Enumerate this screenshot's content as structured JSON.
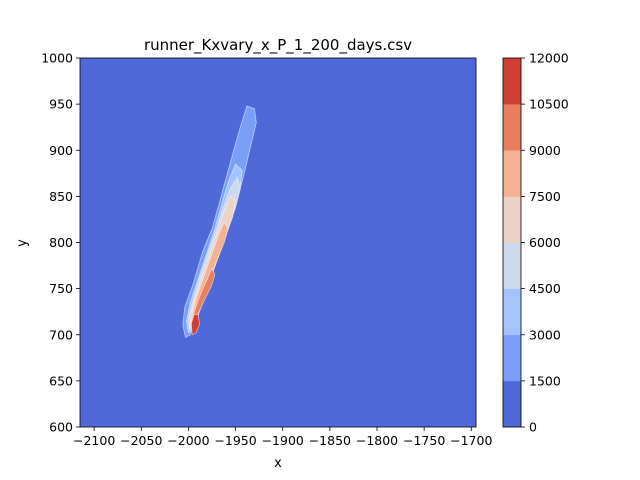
{
  "chart_data": {
    "type": "contour",
    "title": "runner_Kxvary_x_P_1_200_days.csv",
    "xlabel": "x",
    "ylabel": "y",
    "xlim": [
      -2115,
      -1695
    ],
    "ylim": [
      600,
      1000
    ],
    "x_ticks": [
      -2100,
      -2050,
      -2000,
      -1950,
      -1900,
      -1850,
      -1800,
      -1750,
      -1700
    ],
    "x_tick_labels": [
      "−2100",
      "−2050",
      "−2000",
      "−1950",
      "−1900",
      "−1850",
      "−1800",
      "−1750",
      "−1700"
    ],
    "y_ticks": [
      600,
      650,
      700,
      750,
      800,
      850,
      900,
      950,
      1000
    ],
    "y_tick_labels": [
      "600",
      "650",
      "700",
      "750",
      "800",
      "850",
      "900",
      "950",
      "1000"
    ],
    "levels": [
      0,
      1500,
      3000,
      4500,
      6000,
      7500,
      9000,
      10500,
      12000
    ],
    "level_colors": [
      "#4f69d9",
      "#7b9ff9",
      "#a5c3fe",
      "#cdd9ec",
      "#ecd3c5",
      "#f5b194",
      "#e8805f",
      "#ce3f34"
    ],
    "colorbar_tick_labels": [
      "0",
      "1500",
      "3000",
      "4500",
      "6000",
      "7500",
      "9000",
      "10500",
      "12000"
    ],
    "plume": {
      "description_axis": "plume elongated from lower-left to upper-right",
      "bands": [
        {
          "level_index": 1,
          "polygon": [
            [
              -2003,
              697
            ],
            [
              -2006,
              710
            ],
            [
              -2004,
              730
            ],
            [
              -1995,
              755
            ],
            [
              -1985,
              790
            ],
            [
              -1975,
              815
            ],
            [
              -1968,
              840
            ],
            [
              -1960,
              870
            ],
            [
              -1952,
              900
            ],
            [
              -1945,
              925
            ],
            [
              -1938,
              948
            ],
            [
              -1930,
              945
            ],
            [
              -1928,
              930
            ],
            [
              -1935,
              900
            ],
            [
              -1942,
              870
            ],
            [
              -1950,
              840
            ],
            [
              -1960,
              810
            ],
            [
              -1970,
              780
            ],
            [
              -1980,
              750
            ],
            [
              -1990,
              720
            ],
            [
              -1998,
              700
            ]
          ]
        },
        {
          "level_index": 2,
          "polygon": [
            [
              -2000,
              702
            ],
            [
              -2002,
              715
            ],
            [
              -1998,
              735
            ],
            [
              -1990,
              760
            ],
            [
              -1980,
              790
            ],
            [
              -1972,
              815
            ],
            [
              -1965,
              840
            ],
            [
              -1958,
              865
            ],
            [
              -1950,
              885
            ],
            [
              -1943,
              878
            ],
            [
              -1945,
              860
            ],
            [
              -1952,
              835
            ],
            [
              -1960,
              810
            ],
            [
              -1970,
              785
            ],
            [
              -1980,
              755
            ],
            [
              -1990,
              725
            ],
            [
              -1996,
              705
            ]
          ]
        },
        {
          "level_index": 3,
          "polygon": [
            [
              -1999,
              705
            ],
            [
              -2000,
              718
            ],
            [
              -1995,
              738
            ],
            [
              -1987,
              765
            ],
            [
              -1978,
              792
            ],
            [
              -1970,
              815
            ],
            [
              -1963,
              838
            ],
            [
              -1956,
              858
            ],
            [
              -1948,
              870
            ],
            [
              -1945,
              858
            ],
            [
              -1950,
              838
            ],
            [
              -1958,
              815
            ],
            [
              -1967,
              790
            ],
            [
              -1977,
              762
            ],
            [
              -1987,
              735
            ],
            [
              -1994,
              710
            ]
          ]
        },
        {
          "level_index": 4,
          "polygon": [
            [
              -1998,
              708
            ],
            [
              -1998,
              720
            ],
            [
              -1993,
              740
            ],
            [
              -1985,
              765
            ],
            [
              -1976,
              792
            ],
            [
              -1968,
              815
            ],
            [
              -1962,
              835
            ],
            [
              -1955,
              850
            ],
            [
              -1950,
              845
            ],
            [
              -1953,
              828
            ],
            [
              -1960,
              808
            ],
            [
              -1968,
              785
            ],
            [
              -1977,
              760
            ],
            [
              -1986,
              735
            ],
            [
              -1993,
              712
            ]
          ]
        },
        {
          "level_index": 5,
          "polygon": [
            [
              -1997,
              710
            ],
            [
              -1996,
              722
            ],
            [
              -1991,
              742
            ],
            [
              -1983,
              765
            ],
            [
              -1975,
              788
            ],
            [
              -1968,
              808
            ],
            [
              -1962,
              822
            ],
            [
              -1958,
              815
            ],
            [
              -1962,
              800
            ],
            [
              -1970,
              780
            ],
            [
              -1979,
              757
            ],
            [
              -1987,
              735
            ],
            [
              -1993,
              715
            ]
          ]
        },
        {
          "level_index": 6,
          "polygon": [
            [
              -1996,
              712
            ],
            [
              -1994,
              724
            ],
            [
              -1988,
              742
            ],
            [
              -1981,
              758
            ],
            [
              -1975,
              772
            ],
            [
              -1972,
              765
            ],
            [
              -1976,
              752
            ],
            [
              -1983,
              738
            ],
            [
              -1990,
              722
            ]
          ]
        },
        {
          "level_index": 7,
          "polygon": [
            [
              -1996,
              700
            ],
            [
              -1997,
              712
            ],
            [
              -1994,
              722
            ],
            [
              -1990,
              722
            ],
            [
              -1988,
              712
            ],
            [
              -1992,
              702
            ]
          ]
        }
      ]
    }
  }
}
